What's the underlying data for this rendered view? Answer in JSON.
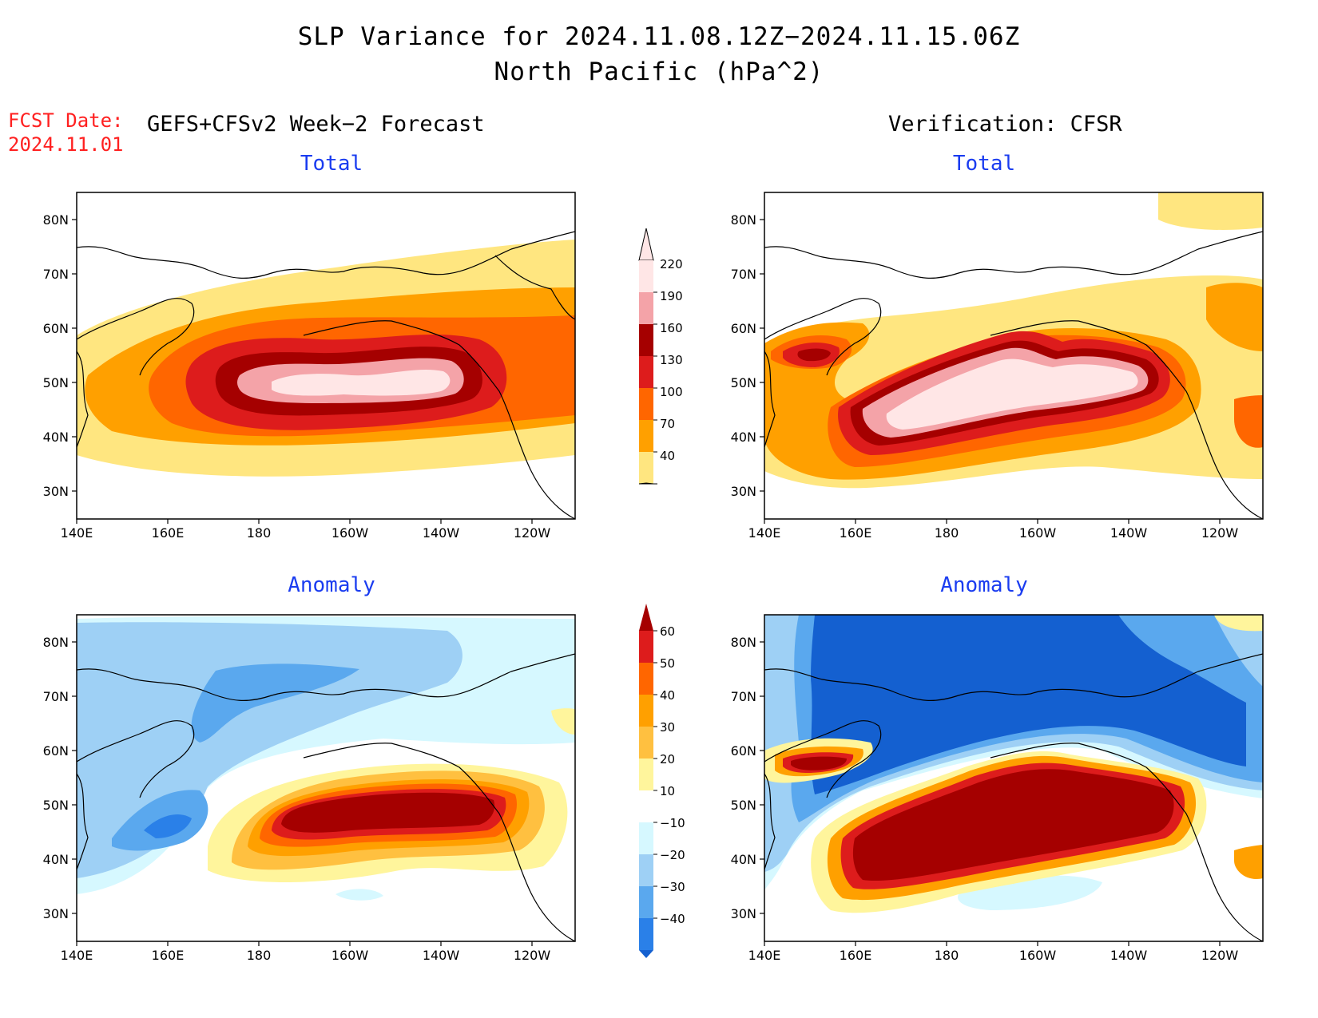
{
  "title": {
    "line1": "SLP Variance for 2024.11.08.12Z−2024.11.15.06Z",
    "line2": "North Pacific (hPa^2)"
  },
  "fcst": {
    "label": "FCST Date:",
    "date": "2024.11.01"
  },
  "left_header": "GEFS+CFSv2 Week−2 Forecast",
  "right_header": "Verification: CFSR",
  "panels": [
    {
      "title": "Total"
    },
    {
      "title": "Total"
    },
    {
      "title": "Anomaly"
    },
    {
      "title": "Anomaly"
    }
  ],
  "axes": {
    "lat_labels": [
      "80N",
      "70N",
      "60N",
      "50N",
      "40N",
      "30N"
    ],
    "lon_labels": [
      "140E",
      "160E",
      "180",
      "160W",
      "140W",
      "120W"
    ]
  },
  "colorbar_total": {
    "labels": [
      "220",
      "190",
      "160",
      "130",
      "100",
      "70",
      "40"
    ],
    "colors": [
      "#ffe6e6",
      "#f4a3a8",
      "#a50000",
      "#dd1c1c",
      "#ff6600",
      "#ffa000",
      "#ffe680"
    ]
  },
  "colorbar_anomaly": {
    "labels": [
      "60",
      "50",
      "40",
      "30",
      "20",
      "10",
      "−10",
      "−20",
      "−30",
      "−40"
    ],
    "colors": [
      "#a50000",
      "#dd1c1c",
      "#ff6600",
      "#ffa000",
      "#ffc040",
      "#fff59c",
      "#ffffff",
      "#d6f8ff",
      "#9ed0f5",
      "#5aa8ee",
      "#2a80e8",
      "#1460d0"
    ]
  }
}
